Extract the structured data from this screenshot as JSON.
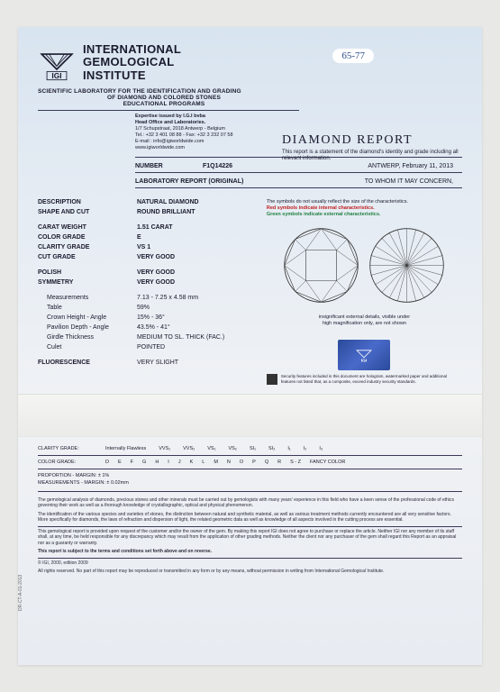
{
  "handwritten_label": "65-77",
  "org": {
    "name_line1": "INTERNATIONAL",
    "name_line2": "GEMOLOGICAL",
    "name_line3": "INSTITUTE",
    "subtitle_line1": "SCIENTIFIC LABORATORY FOR THE IDENTIFICATION AND GRADING",
    "subtitle_line2": "OF DIAMOND AND COLORED STONES",
    "subtitle_line3": "EDUCATIONAL PROGRAMS"
  },
  "expertise": {
    "heading": "Expertise issued by I.G.I bvba",
    "heading2": "Head Office and Laboratories.",
    "addr": "1/7 Schupstraat, 2018 Antwerp - Belgium",
    "tel": "Tel.: +32 3 401 08 88 - Fax: +32 3 232 07 58",
    "email": "E-mail : info@igiworldwide.com",
    "web": "www.igiworldwide.com"
  },
  "report": {
    "title": "DIAMOND REPORT",
    "sub": "This report is a statement of the diamond's identity and grade including all relevant information."
  },
  "number_section": {
    "number_label": "NUMBER",
    "number_value": "F1Q14226",
    "location_date": "ANTWERP, February 11, 2013",
    "lab_label": "LABORATORY REPORT (ORIGINAL)",
    "to_whom": "TO WHOM IT MAY CONCERN,"
  },
  "specs": [
    {
      "k": "DESCRIPTION",
      "v": "NATURAL DIAMOND",
      "bold": true
    },
    {
      "k": "SHAPE AND CUT",
      "v": "ROUND BRILLIANT",
      "bold": true
    },
    {
      "gap": true
    },
    {
      "k": "CARAT WEIGHT",
      "v": "1.51 CARAT",
      "kbold": true,
      "vbold": true
    },
    {
      "k": "COLOR GRADE",
      "v": "E",
      "kbold": true,
      "vbold": true
    },
    {
      "k": "CLARITY GRADE",
      "v": "VS 1",
      "kbold": true,
      "vbold": true
    },
    {
      "k": "CUT GRADE",
      "v": "VERY GOOD",
      "kbold": true,
      "vbold": true
    },
    {
      "gap": true
    },
    {
      "k": "POLISH",
      "v": "VERY GOOD",
      "kbold": true,
      "vbold": true
    },
    {
      "k": "SYMMETRY",
      "v": "VERY GOOD",
      "kbold": true,
      "vbold": true
    },
    {
      "gap": true
    },
    {
      "k": "Measurements",
      "v": "7.13 - 7.25 x 4.58 mm",
      "indent": true
    },
    {
      "k": "Table",
      "v": "59%",
      "indent": true
    },
    {
      "k": "Crown Height - Angle",
      "v": "15% - 36°",
      "indent": true
    },
    {
      "k": "Pavilion Depth - Angle",
      "v": "43.5% - 41°",
      "indent": true
    },
    {
      "k": "Girdle Thickness",
      "v": "MEDIUM TO SL. THICK (FAC.)",
      "indent": true
    },
    {
      "k": "Culet",
      "v": "POINTED",
      "indent": true
    },
    {
      "gap": true
    },
    {
      "k": "FLUORESCENCE",
      "v": "VERY SLIGHT",
      "kbold": true
    }
  ],
  "legend": {
    "line1": "The symbols do not usually reflect the size of the characteristics.",
    "line2": "Red symbols indicate internal characteristics.",
    "line3": "Green symbols indicate external characteristics."
  },
  "note": {
    "line1": "insignificant external details, visible under",
    "line2": "high magnification only, are not shown"
  },
  "hologram_text": "IGI",
  "security_note": "Security features included in this document are hologram, watermarked paper and additional features not listed that, as a composite, exceed industry security standards.",
  "clarity_scale": {
    "label": "CLARITY GRADE:",
    "items": [
      "Internally Flawless",
      "VVS₁",
      "VVS₂",
      "VS₁",
      "VS₂",
      "SI₁",
      "SI₂",
      "I₁",
      "I₂",
      "I₃"
    ]
  },
  "color_scale": {
    "label": "COLOR GRADE:",
    "items": [
      "D",
      "E",
      "F",
      "G",
      "H",
      "I",
      "J",
      "K",
      "L",
      "M",
      "N",
      "O",
      "P",
      "Q",
      "R",
      "S - Z",
      "FANCY COLOR"
    ]
  },
  "margins": {
    "prop": "PROPORTION - MARGIN: ± 1%",
    "meas": "MEASUREMENTS - MARGIN: ± 0.02mm"
  },
  "fine_print": {
    "p1": "The gemological analysis of diamonds, precious stones and other minerals must be carried out by gemologists with many years' experience in this field who have a keen sense of the professional code of ethics governing their work as well as a thorough knowledge of crystallographic, optical and physical phenomenon.",
    "p2": "The identification of the various species and varieties of stones, the distinction between natural and synthetic material, as well as various treatment methods currently encountered are all very sensitive factors. More specifically for diamonds, the laws of refraction and dispersion of light, the related geometric data as well as knowledge of all aspects involved in the cutting process are essential.",
    "p3": "This gemological report is provided upon request of the customer and/or the owner of the gem. By making this report IGI does not agree to purchase or replace the article. Neither IGI nor any member of its staff shall, at any time, be held responsible for any discrepancy which may result from the application of other grading methods. Neither the client nor any purchaser of the gem shall regard this Report as an appraisal nor as a guaranty or warranty.",
    "p4": "This report is subject to the terms and conditions set forth above and on reverse.",
    "copyright": "© IGI, 2000, edition 2009",
    "rights": "All rights reserved. No part of this report may be reproduced or transmitted in any form or by any means, without permission in writing from International Gemological Institute."
  },
  "side_code": "DR-CT-A-01-2013",
  "colors": {
    "bg_top": "#d8e4f0",
    "text": "#1a1a2e",
    "red": "#c02020",
    "green": "#208040",
    "hologram": "#2a4a9a"
  }
}
